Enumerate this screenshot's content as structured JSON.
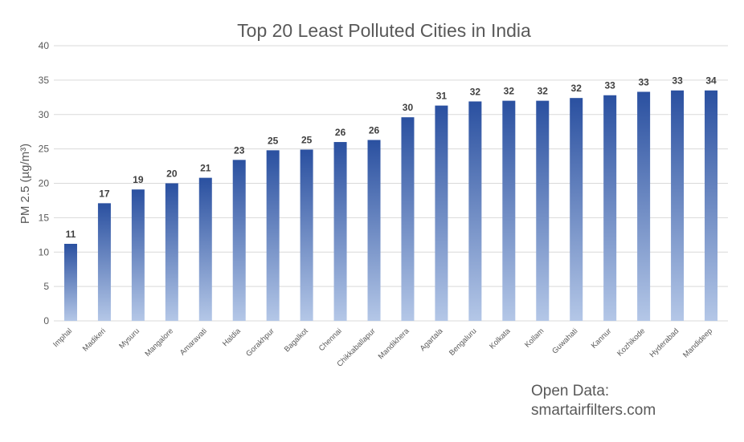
{
  "chart_data": {
    "type": "bar",
    "title": "Top 20 Least Polluted Cities in India",
    "xlabel": "",
    "ylabel": "PM 2.5 (µg/m³)",
    "ylim": [
      0,
      40
    ],
    "yticks": [
      0,
      5,
      10,
      15,
      20,
      25,
      30,
      35,
      40
    ],
    "grid": true,
    "categories": [
      "Imphal",
      "Madikeri",
      "Mysuru",
      "Mangalore",
      "Amaravati",
      "Haldia",
      "Gorakhpur",
      "Bagalkot",
      "Chennai",
      "Chikkaballapur",
      "Mandikhera",
      "Agartala",
      "Bengaluru",
      "Kolkata",
      "Kollam",
      "Guwahati",
      "Kannur",
      "Kozhikode",
      "Hyderabad",
      "Mandideep"
    ],
    "values": [
      11.2,
      17.1,
      19.1,
      20.0,
      20.8,
      23.4,
      24.8,
      24.9,
      26.0,
      26.3,
      29.6,
      31.3,
      31.9,
      32.0,
      32.0,
      32.4,
      32.8,
      33.3,
      33.5,
      33.5
    ],
    "data_labels": [
      "11",
      "17",
      "19",
      "20",
      "21",
      "23",
      "25",
      "25",
      "26",
      "26",
      "30",
      "31",
      "32",
      "32",
      "32",
      "32",
      "33",
      "33",
      "33",
      "34"
    ],
    "colors": {
      "bar_top": "#2a50a0",
      "bar_bottom": "#b4c7e7",
      "grid": "#d9d9d9"
    }
  },
  "source": {
    "line1": "Open Data:",
    "line2": "smartairfilters.com"
  }
}
